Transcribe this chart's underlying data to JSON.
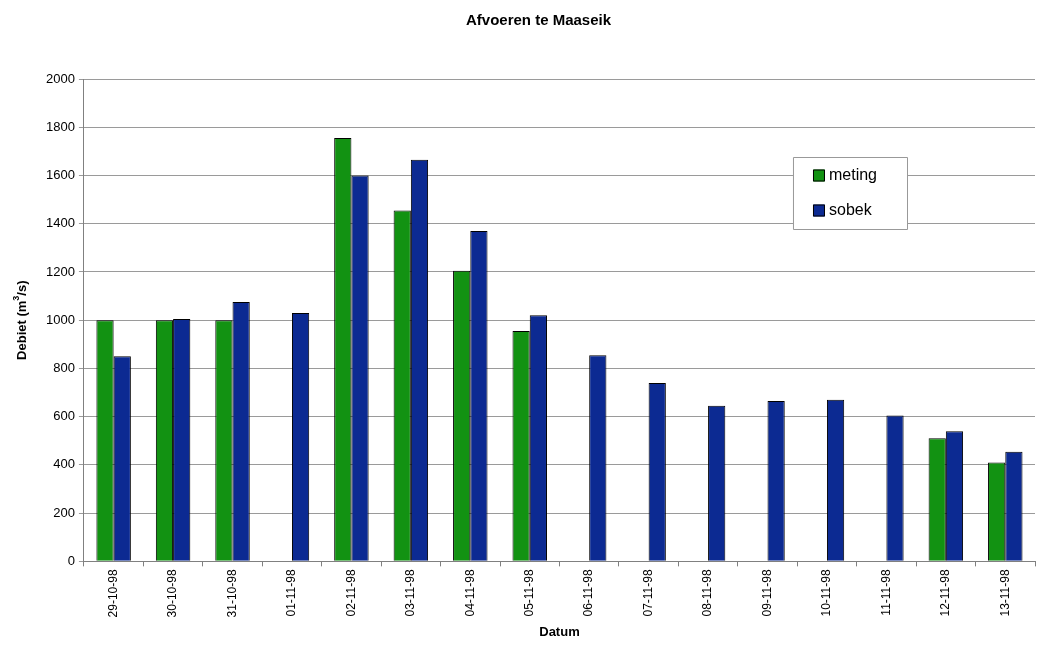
{
  "chart_data": {
    "type": "bar",
    "title": "Afvoeren te Maaseik",
    "xlabel": "Datum",
    "ylabel": "Debiet (m$^{3}$/s)",
    "categories": [
      "29-10-98",
      "30-10-98",
      "31-10-98",
      "01-11-98",
      "02-11-98",
      "03-11-98",
      "04-11-98",
      "05-11-98",
      "06-11-98",
      "07-11-98",
      "08-11-98",
      "09-11-98",
      "10-11-98",
      "11-11-98",
      "12-11-98",
      "13-11-98"
    ],
    "series": [
      {
        "name": "meting",
        "color": "#129212",
        "values": [
          1000,
          1000,
          1000,
          null,
          1755,
          1455,
          1205,
          955,
          null,
          null,
          null,
          null,
          null,
          null,
          510,
          410
        ]
      },
      {
        "name": "sobek",
        "color": "#0c2a92",
        "values": [
          850,
          1005,
          1075,
          1030,
          1600,
          1665,
          1370,
          1020,
          855,
          740,
          645,
          665,
          670,
          605,
          540,
          455
        ]
      }
    ],
    "ylim": [
      0,
      2000
    ],
    "yticks": [
      0,
      200,
      400,
      600,
      800,
      1000,
      1200,
      1400,
      1600,
      1800,
      2000
    ],
    "grid": "y",
    "legend": "top right"
  }
}
